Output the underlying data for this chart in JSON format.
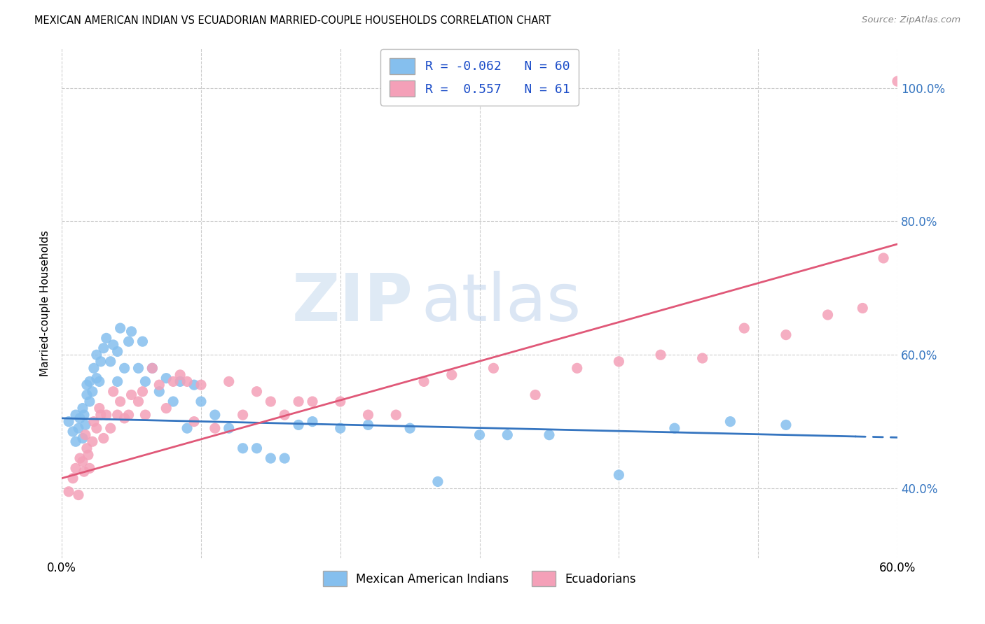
{
  "title": "MEXICAN AMERICAN INDIAN VS ECUADORIAN MARRIED-COUPLE HOUSEHOLDS CORRELATION CHART",
  "source": "Source: ZipAtlas.com",
  "ylabel": "Married-couple Households",
  "ytick_labels": [
    "40.0%",
    "60.0%",
    "80.0%",
    "100.0%"
  ],
  "ytick_values": [
    0.4,
    0.6,
    0.8,
    1.0
  ],
  "xlim": [
    0.0,
    0.6
  ],
  "ylim": [
    0.295,
    1.06
  ],
  "legend_blue_R": "R = -0.062",
  "legend_blue_N": "N = 60",
  "legend_pink_R": "R =  0.557",
  "legend_pink_N": "N = 61",
  "legend_label_blue": "Mexican American Indians",
  "legend_label_pink": "Ecuadorians",
  "blue_color": "#85BFEE",
  "pink_color": "#F4A0B8",
  "blue_line_color": "#3575C0",
  "pink_line_color": "#E05878",
  "watermark_zip": "ZIP",
  "watermark_atlas": "atlas",
  "blue_line_intercept": 0.505,
  "blue_line_slope": -0.048,
  "pink_line_intercept": 0.415,
  "pink_line_slope": 0.585,
  "blue_scatter_x": [
    0.005,
    0.008,
    0.01,
    0.01,
    0.012,
    0.013,
    0.015,
    0.015,
    0.016,
    0.017,
    0.018,
    0.018,
    0.02,
    0.02,
    0.022,
    0.023,
    0.025,
    0.025,
    0.027,
    0.028,
    0.03,
    0.032,
    0.035,
    0.037,
    0.04,
    0.04,
    0.042,
    0.045,
    0.048,
    0.05,
    0.055,
    0.058,
    0.06,
    0.065,
    0.07,
    0.075,
    0.08,
    0.085,
    0.09,
    0.095,
    0.1,
    0.11,
    0.12,
    0.13,
    0.14,
    0.15,
    0.16,
    0.17,
    0.18,
    0.2,
    0.22,
    0.25,
    0.27,
    0.3,
    0.32,
    0.35,
    0.4,
    0.44,
    0.48,
    0.52
  ],
  "blue_scatter_y": [
    0.5,
    0.485,
    0.51,
    0.47,
    0.49,
    0.505,
    0.52,
    0.475,
    0.51,
    0.495,
    0.54,
    0.555,
    0.53,
    0.56,
    0.545,
    0.58,
    0.565,
    0.6,
    0.56,
    0.59,
    0.61,
    0.625,
    0.59,
    0.615,
    0.605,
    0.56,
    0.64,
    0.58,
    0.62,
    0.635,
    0.58,
    0.62,
    0.56,
    0.58,
    0.545,
    0.565,
    0.53,
    0.56,
    0.49,
    0.555,
    0.53,
    0.51,
    0.49,
    0.46,
    0.46,
    0.445,
    0.445,
    0.495,
    0.5,
    0.49,
    0.495,
    0.49,
    0.41,
    0.48,
    0.48,
    0.48,
    0.42,
    0.49,
    0.5,
    0.495
  ],
  "pink_scatter_x": [
    0.005,
    0.008,
    0.01,
    0.012,
    0.013,
    0.015,
    0.016,
    0.017,
    0.018,
    0.019,
    0.02,
    0.022,
    0.023,
    0.025,
    0.027,
    0.028,
    0.03,
    0.032,
    0.035,
    0.037,
    0.04,
    0.042,
    0.045,
    0.048,
    0.05,
    0.055,
    0.058,
    0.06,
    0.065,
    0.07,
    0.075,
    0.08,
    0.085,
    0.09,
    0.095,
    0.1,
    0.11,
    0.12,
    0.13,
    0.14,
    0.15,
    0.16,
    0.17,
    0.18,
    0.2,
    0.22,
    0.24,
    0.26,
    0.28,
    0.31,
    0.34,
    0.37,
    0.4,
    0.43,
    0.46,
    0.49,
    0.52,
    0.55,
    0.575,
    0.59,
    0.6
  ],
  "pink_scatter_y": [
    0.395,
    0.415,
    0.43,
    0.39,
    0.445,
    0.44,
    0.425,
    0.48,
    0.46,
    0.45,
    0.43,
    0.47,
    0.5,
    0.49,
    0.52,
    0.51,
    0.475,
    0.51,
    0.49,
    0.545,
    0.51,
    0.53,
    0.505,
    0.51,
    0.54,
    0.53,
    0.545,
    0.51,
    0.58,
    0.555,
    0.52,
    0.56,
    0.57,
    0.56,
    0.5,
    0.555,
    0.49,
    0.56,
    0.51,
    0.545,
    0.53,
    0.51,
    0.53,
    0.53,
    0.53,
    0.51,
    0.51,
    0.56,
    0.57,
    0.58,
    0.54,
    0.58,
    0.59,
    0.6,
    0.595,
    0.64,
    0.63,
    0.66,
    0.67,
    0.745,
    1.01
  ]
}
